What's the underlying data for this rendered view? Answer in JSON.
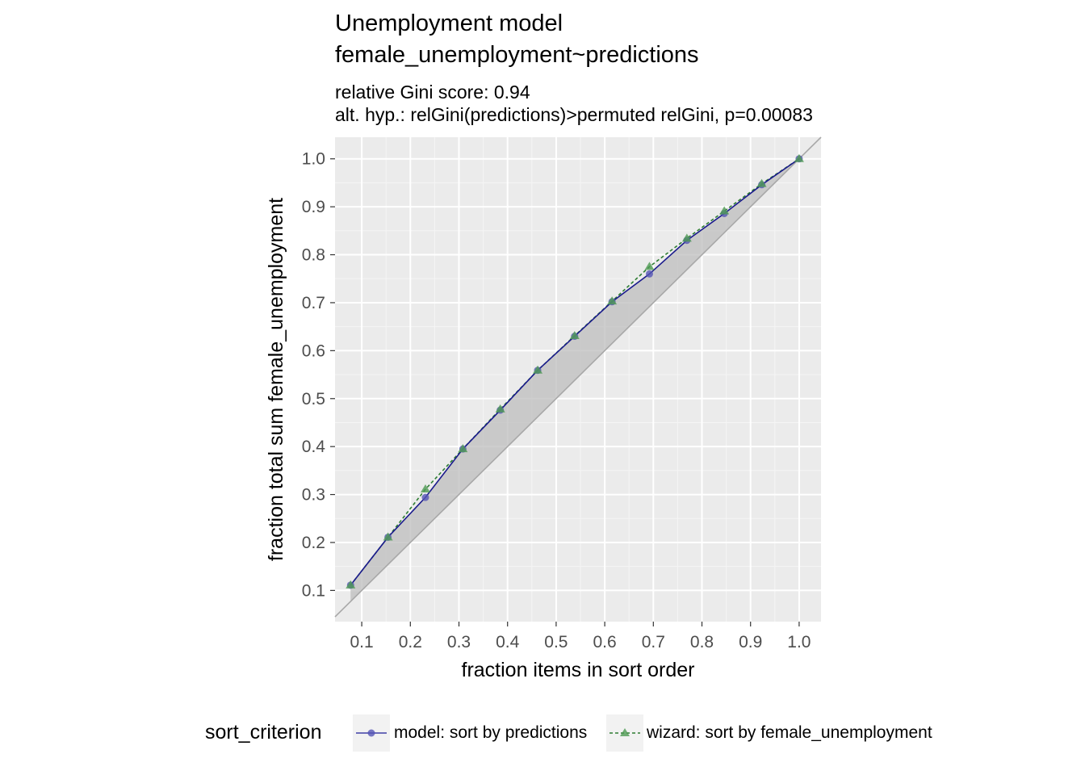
{
  "title_line1": "Unemployment model",
  "title_line2": "female_unemployment~predictions",
  "subtitle_line1": "relative Gini score: 0.94",
  "subtitle_line2": "alt. hyp.: relGini(predictions)>permuted relGini, p=0.00083",
  "legend": {
    "title": "sort_criterion",
    "items": [
      {
        "label": "model: sort by predictions",
        "color": "#3f3fa6",
        "line": "solid",
        "shape": "circle"
      },
      {
        "label": "wizard: sort by female_unemployment",
        "color": "#2e7d32",
        "line": "dashed",
        "shape": "triangle"
      }
    ]
  },
  "chart_data": {
    "type": "line",
    "xlabel": "fraction items in sort order",
    "ylabel": "fraction total sum female_unemployment",
    "xlim": [
      0.0,
      1.0
    ],
    "ylim": [
      0.0,
      1.0
    ],
    "xticks": [
      "0.1",
      "0.2",
      "0.3",
      "0.4",
      "0.5",
      "0.6",
      "0.7",
      "0.8",
      "0.9",
      "1.0"
    ],
    "yticks": [
      "0.1",
      "0.2",
      "0.3",
      "0.4",
      "0.5",
      "0.6",
      "0.7",
      "0.8",
      "0.9",
      "1.0"
    ],
    "x": [
      0.077,
      0.154,
      0.231,
      0.308,
      0.385,
      0.462,
      0.538,
      0.615,
      0.692,
      0.769,
      0.846,
      0.923,
      1.0
    ],
    "series": [
      {
        "name": "model: sort by predictions",
        "values": [
          0.111,
          0.211,
          0.294,
          0.395,
          0.476,
          0.559,
          0.63,
          0.702,
          0.76,
          0.83,
          0.886,
          0.946,
          1.0
        ]
      },
      {
        "name": "wizard: sort by female_unemployment",
        "values": [
          0.111,
          0.211,
          0.311,
          0.395,
          0.478,
          0.559,
          0.631,
          0.703,
          0.775,
          0.834,
          0.891,
          0.948,
          1.0
        ]
      }
    ],
    "reference_line": "y = x",
    "grid": true,
    "legend_position": "bottom"
  }
}
